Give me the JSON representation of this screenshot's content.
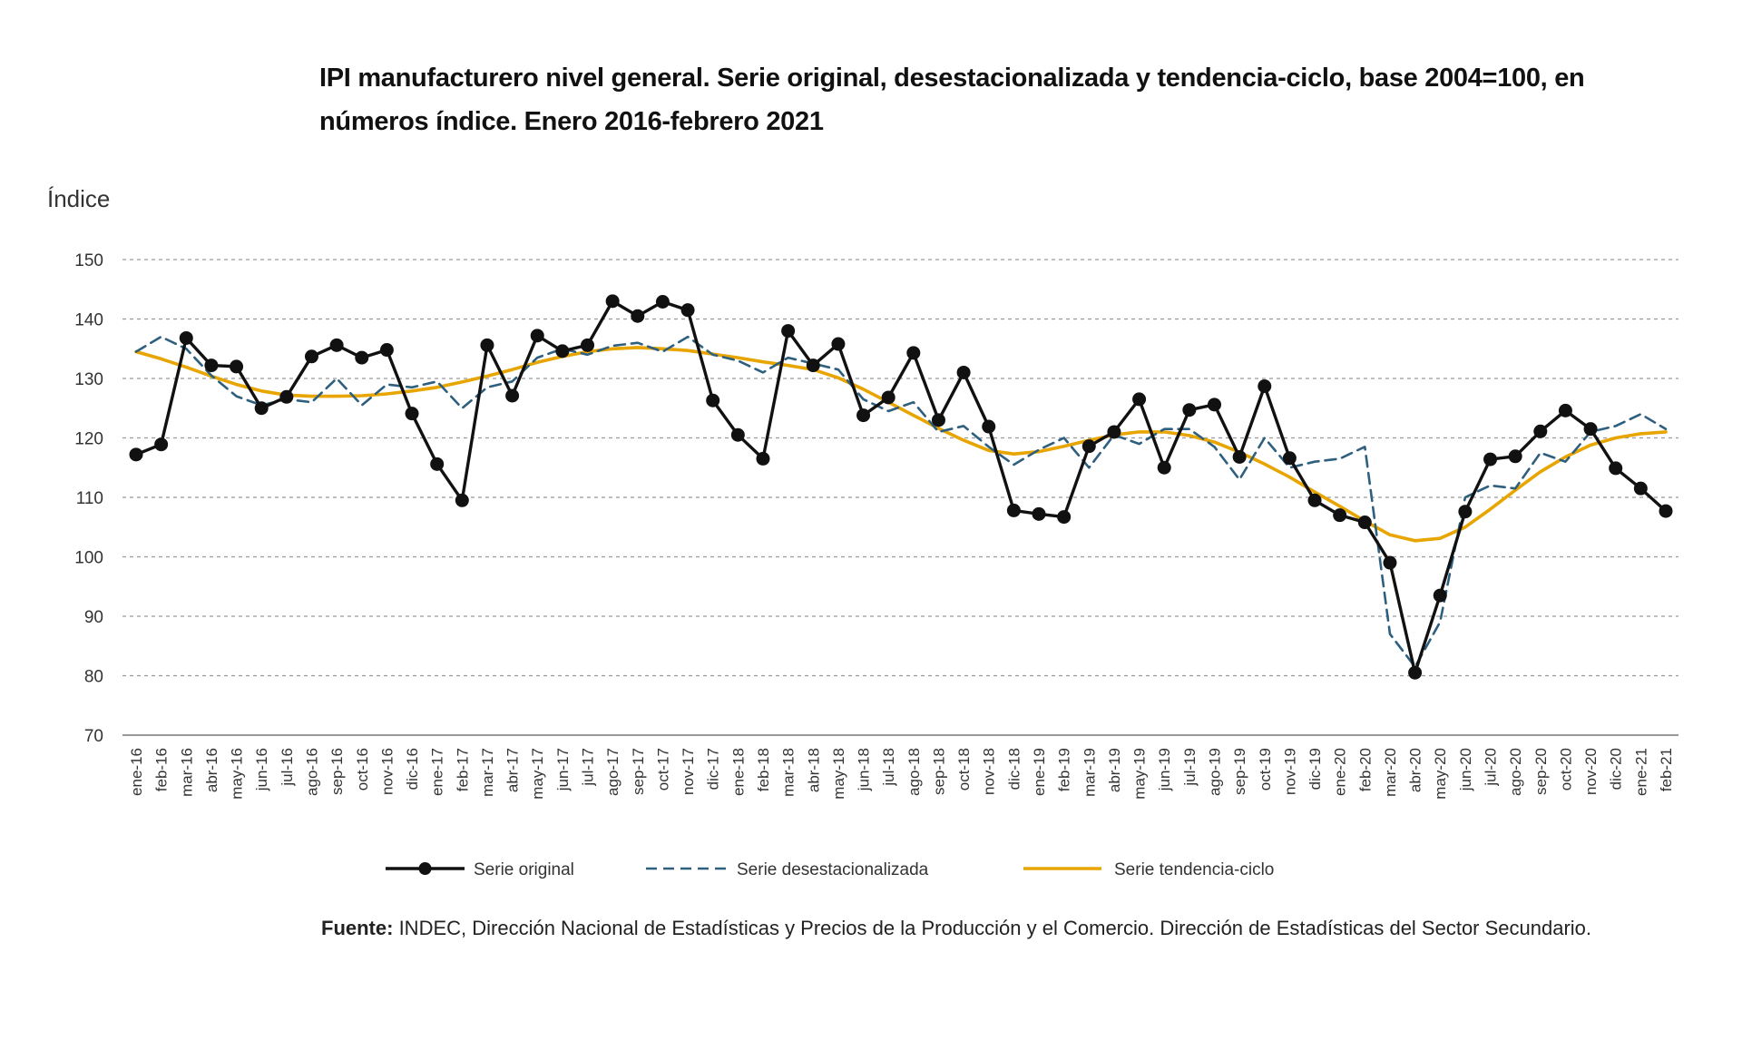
{
  "chart_data": {
    "type": "line",
    "title": "IPI manufacturero nivel general. Serie original, desestacionalizada y tendencia-ciclo, base 2004=100, en números índice. Enero 2016-febrero 2021",
    "ylabel": "Índice",
    "xlabel": "",
    "ylim": [
      70,
      150
    ],
    "yticks": [
      70,
      80,
      90,
      100,
      110,
      120,
      130,
      140,
      150
    ],
    "grid": "horizontal-dashed",
    "legend_position": "bottom",
    "categories": [
      "ene-16",
      "feb-16",
      "mar-16",
      "abr-16",
      "may-16",
      "jun-16",
      "jul-16",
      "ago-16",
      "sep-16",
      "oct-16",
      "nov-16",
      "dic-16",
      "ene-17",
      "feb-17",
      "mar-17",
      "abr-17",
      "may-17",
      "jun-17",
      "jul-17",
      "ago-17",
      "sep-17",
      "oct-17",
      "nov-17",
      "dic-17",
      "ene-18",
      "feb-18",
      "mar-18",
      "abr-18",
      "may-18",
      "jun-18",
      "jul-18",
      "ago-18",
      "sep-18",
      "oct-18",
      "nov-18",
      "dic-18",
      "ene-19",
      "feb-19",
      "mar-19",
      "abr-19",
      "may-19",
      "jun-19",
      "jul-19",
      "ago-19",
      "sep-19",
      "oct-19",
      "nov-19",
      "dic-19",
      "ene-20",
      "feb-20",
      "mar-20",
      "abr-20",
      "may-20",
      "jun-20",
      "jul-20",
      "ago-20",
      "sep-20",
      "oct-20",
      "nov-20",
      "dic-20",
      "ene-21",
      "feb-21"
    ],
    "series": [
      {
        "name": "Serie original",
        "color": "#111111",
        "style": "solid-markers",
        "values": [
          117.2,
          118.9,
          136.8,
          132.2,
          132.0,
          125.0,
          126.9,
          133.7,
          135.6,
          133.5,
          134.8,
          124.1,
          115.6,
          109.5,
          135.6,
          127.1,
          137.2,
          134.6,
          135.6,
          143.0,
          140.5,
          142.9,
          141.5,
          126.3,
          120.5,
          116.5,
          138.0,
          132.2,
          135.8,
          123.8,
          126.8,
          134.3,
          123.0,
          131.0,
          121.9,
          107.8,
          107.2,
          106.7,
          118.6,
          121.0,
          126.5,
          115.0,
          124.7,
          125.6,
          116.8,
          128.7,
          116.6,
          109.5,
          107.0,
          105.8,
          99.0,
          80.5,
          93.5,
          107.6,
          116.4,
          116.9,
          121.1,
          124.6,
          121.5,
          114.9,
          111.5,
          107.7
        ]
      },
      {
        "name": "Serie desestacionalizada",
        "color": "#2e5f7e",
        "style": "dashed",
        "values": [
          134.5,
          137.0,
          135.0,
          130.5,
          127.0,
          125.5,
          126.5,
          126.0,
          130.0,
          125.5,
          129.0,
          128.5,
          129.5,
          125.0,
          128.5,
          129.5,
          133.5,
          135.0,
          134.0,
          135.5,
          136.0,
          134.5,
          137.0,
          134.0,
          133.0,
          131.0,
          133.5,
          132.5,
          131.5,
          126.5,
          124.5,
          126.0,
          121.0,
          122.0,
          118.5,
          115.5,
          118.0,
          120.0,
          115.0,
          120.5,
          119.0,
          121.5,
          121.5,
          118.5,
          113.0,
          120.0,
          115.0,
          116.0,
          116.5,
          118.5,
          87.0,
          81.5,
          89.0,
          110.0,
          112.0,
          111.5,
          117.5,
          116.0,
          121.0,
          122.0,
          124.0,
          121.5
        ]
      },
      {
        "name": "Serie tendencia-ciclo",
        "color": "#e8a500",
        "style": "solid",
        "values": [
          134.5,
          133.3,
          131.9,
          130.4,
          129.0,
          127.9,
          127.2,
          127.0,
          127.0,
          127.1,
          127.4,
          127.9,
          128.5,
          129.4,
          130.4,
          131.5,
          132.7,
          133.7,
          134.5,
          135.0,
          135.2,
          135.0,
          134.7,
          134.1,
          133.5,
          132.8,
          132.2,
          131.5,
          130.1,
          128.2,
          126.0,
          123.8,
          121.6,
          119.6,
          117.9,
          117.3,
          117.7,
          118.6,
          119.6,
          120.5,
          121.0,
          121.0,
          120.4,
          119.3,
          117.6,
          115.6,
          113.4,
          110.9,
          108.5,
          106.0,
          103.7,
          102.7,
          103.1,
          105.0,
          108.0,
          111.2,
          114.3,
          116.8,
          118.8,
          120.0,
          120.7,
          121.0
        ]
      }
    ]
  },
  "source": {
    "label": "Fuente:",
    "text": " INDEC, Dirección Nacional de Estadísticas y Precios de la Producción y el Comercio. Dirección de Estadísticas del Sector Secundario."
  }
}
